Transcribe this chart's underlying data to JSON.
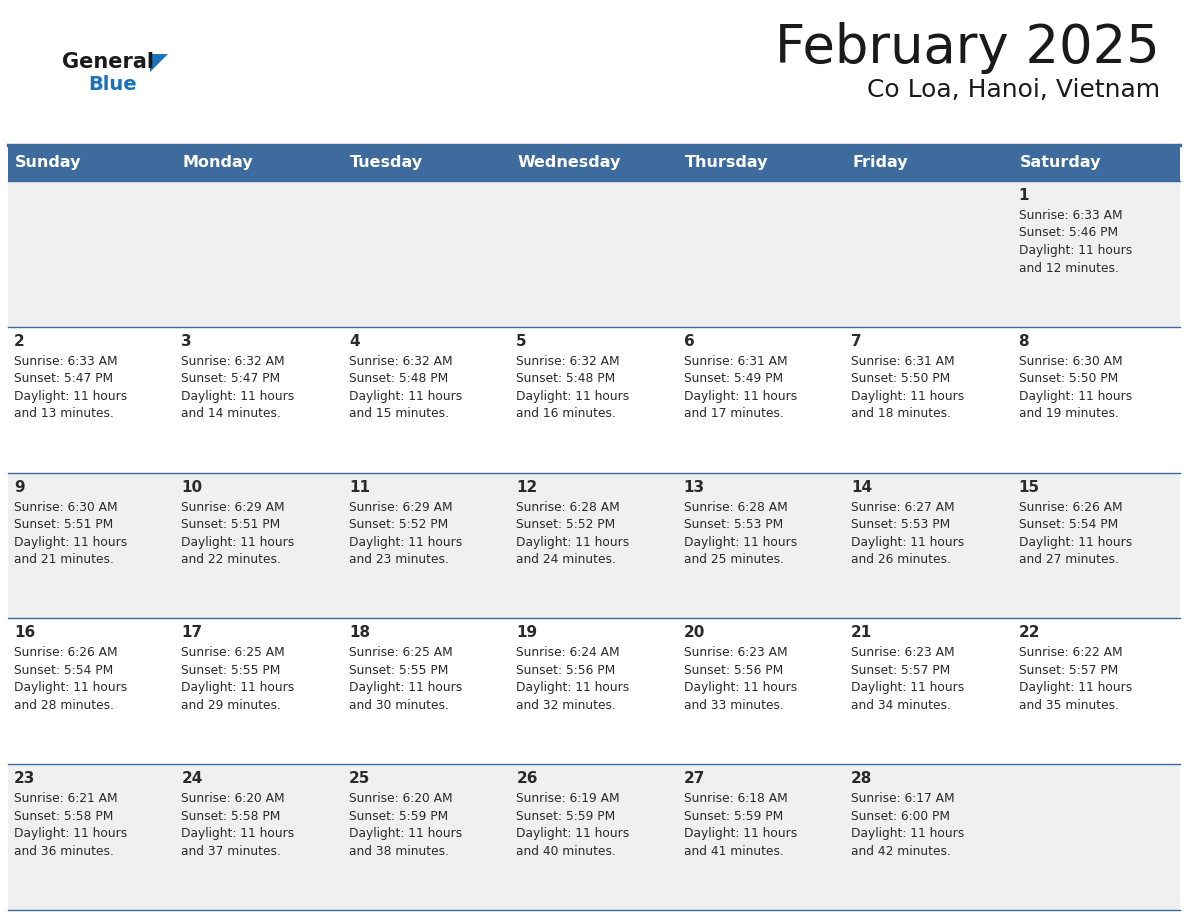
{
  "title": "February 2025",
  "subtitle": "Co Loa, Hanoi, Vietnam",
  "days_of_week": [
    "Sunday",
    "Monday",
    "Tuesday",
    "Wednesday",
    "Thursday",
    "Friday",
    "Saturday"
  ],
  "header_bg": "#3d6b9e",
  "header_text": "#ffffff",
  "row_bg_odd": "#f0f0f0",
  "row_bg_even": "#ffffff",
  "cell_border": "#3d6b9e",
  "day_number_color": "#2a2a2a",
  "info_text_color": "#2a2a2a",
  "title_color": "#1a1a1a",
  "subtitle_color": "#1a1a1a",
  "logo_general_color": "#1a1a1a",
  "logo_blue_color": "#1a72b8",
  "calendar_data": [
    [
      {
        "day": null,
        "info": ""
      },
      {
        "day": null,
        "info": ""
      },
      {
        "day": null,
        "info": ""
      },
      {
        "day": null,
        "info": ""
      },
      {
        "day": null,
        "info": ""
      },
      {
        "day": null,
        "info": ""
      },
      {
        "day": 1,
        "info": "Sunrise: 6:33 AM\nSunset: 5:46 PM\nDaylight: 11 hours\nand 12 minutes."
      }
    ],
    [
      {
        "day": 2,
        "info": "Sunrise: 6:33 AM\nSunset: 5:47 PM\nDaylight: 11 hours\nand 13 minutes."
      },
      {
        "day": 3,
        "info": "Sunrise: 6:32 AM\nSunset: 5:47 PM\nDaylight: 11 hours\nand 14 minutes."
      },
      {
        "day": 4,
        "info": "Sunrise: 6:32 AM\nSunset: 5:48 PM\nDaylight: 11 hours\nand 15 minutes."
      },
      {
        "day": 5,
        "info": "Sunrise: 6:32 AM\nSunset: 5:48 PM\nDaylight: 11 hours\nand 16 minutes."
      },
      {
        "day": 6,
        "info": "Sunrise: 6:31 AM\nSunset: 5:49 PM\nDaylight: 11 hours\nand 17 minutes."
      },
      {
        "day": 7,
        "info": "Sunrise: 6:31 AM\nSunset: 5:50 PM\nDaylight: 11 hours\nand 18 minutes."
      },
      {
        "day": 8,
        "info": "Sunrise: 6:30 AM\nSunset: 5:50 PM\nDaylight: 11 hours\nand 19 minutes."
      }
    ],
    [
      {
        "day": 9,
        "info": "Sunrise: 6:30 AM\nSunset: 5:51 PM\nDaylight: 11 hours\nand 21 minutes."
      },
      {
        "day": 10,
        "info": "Sunrise: 6:29 AM\nSunset: 5:51 PM\nDaylight: 11 hours\nand 22 minutes."
      },
      {
        "day": 11,
        "info": "Sunrise: 6:29 AM\nSunset: 5:52 PM\nDaylight: 11 hours\nand 23 minutes."
      },
      {
        "day": 12,
        "info": "Sunrise: 6:28 AM\nSunset: 5:52 PM\nDaylight: 11 hours\nand 24 minutes."
      },
      {
        "day": 13,
        "info": "Sunrise: 6:28 AM\nSunset: 5:53 PM\nDaylight: 11 hours\nand 25 minutes."
      },
      {
        "day": 14,
        "info": "Sunrise: 6:27 AM\nSunset: 5:53 PM\nDaylight: 11 hours\nand 26 minutes."
      },
      {
        "day": 15,
        "info": "Sunrise: 6:26 AM\nSunset: 5:54 PM\nDaylight: 11 hours\nand 27 minutes."
      }
    ],
    [
      {
        "day": 16,
        "info": "Sunrise: 6:26 AM\nSunset: 5:54 PM\nDaylight: 11 hours\nand 28 minutes."
      },
      {
        "day": 17,
        "info": "Sunrise: 6:25 AM\nSunset: 5:55 PM\nDaylight: 11 hours\nand 29 minutes."
      },
      {
        "day": 18,
        "info": "Sunrise: 6:25 AM\nSunset: 5:55 PM\nDaylight: 11 hours\nand 30 minutes."
      },
      {
        "day": 19,
        "info": "Sunrise: 6:24 AM\nSunset: 5:56 PM\nDaylight: 11 hours\nand 32 minutes."
      },
      {
        "day": 20,
        "info": "Sunrise: 6:23 AM\nSunset: 5:56 PM\nDaylight: 11 hours\nand 33 minutes."
      },
      {
        "day": 21,
        "info": "Sunrise: 6:23 AM\nSunset: 5:57 PM\nDaylight: 11 hours\nand 34 minutes."
      },
      {
        "day": 22,
        "info": "Sunrise: 6:22 AM\nSunset: 5:57 PM\nDaylight: 11 hours\nand 35 minutes."
      }
    ],
    [
      {
        "day": 23,
        "info": "Sunrise: 6:21 AM\nSunset: 5:58 PM\nDaylight: 11 hours\nand 36 minutes."
      },
      {
        "day": 24,
        "info": "Sunrise: 6:20 AM\nSunset: 5:58 PM\nDaylight: 11 hours\nand 37 minutes."
      },
      {
        "day": 25,
        "info": "Sunrise: 6:20 AM\nSunset: 5:59 PM\nDaylight: 11 hours\nand 38 minutes."
      },
      {
        "day": 26,
        "info": "Sunrise: 6:19 AM\nSunset: 5:59 PM\nDaylight: 11 hours\nand 40 minutes."
      },
      {
        "day": 27,
        "info": "Sunrise: 6:18 AM\nSunset: 5:59 PM\nDaylight: 11 hours\nand 41 minutes."
      },
      {
        "day": 28,
        "info": "Sunrise: 6:17 AM\nSunset: 6:00 PM\nDaylight: 11 hours\nand 42 minutes."
      },
      {
        "day": null,
        "info": ""
      }
    ]
  ]
}
